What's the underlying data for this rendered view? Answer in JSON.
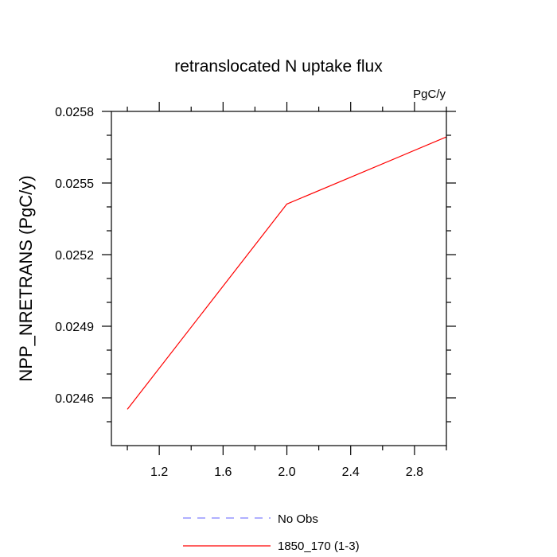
{
  "chart_data": {
    "type": "line",
    "title": "retranslocated N uptake flux",
    "units": "PgC/y",
    "xlabel": "",
    "ylabel": "NPP_NRETRANS  (PgC/y)",
    "xlim": [
      0.9,
      3.0
    ],
    "ylim": [
      0.0244,
      0.0258
    ],
    "x_ticks": [
      1.2,
      1.6,
      2.0,
      2.4,
      2.8
    ],
    "x_tick_labels": [
      "1.2",
      "1.6",
      "2.0",
      "2.4",
      "2.8"
    ],
    "y_ticks": [
      0.0246,
      0.0249,
      0.0252,
      0.0255,
      0.0258
    ],
    "y_tick_labels": [
      "0.0246",
      "0.0249",
      "0.0252",
      "0.0255",
      "0.0258"
    ],
    "x_minor_step": 0.2,
    "y_minor_step": 0.0001,
    "grid": false,
    "legend_position": "bottom",
    "series": [
      {
        "name": "No Obs",
        "color": "#8080ff",
        "dashed": true,
        "x": [],
        "y": []
      },
      {
        "name": "1850_170 (1-3)",
        "color": "#ff0000",
        "dashed": false,
        "x": [
          1.0,
          2.0,
          3.0
        ],
        "y": [
          0.024552,
          0.025412,
          0.025693
        ]
      }
    ]
  }
}
